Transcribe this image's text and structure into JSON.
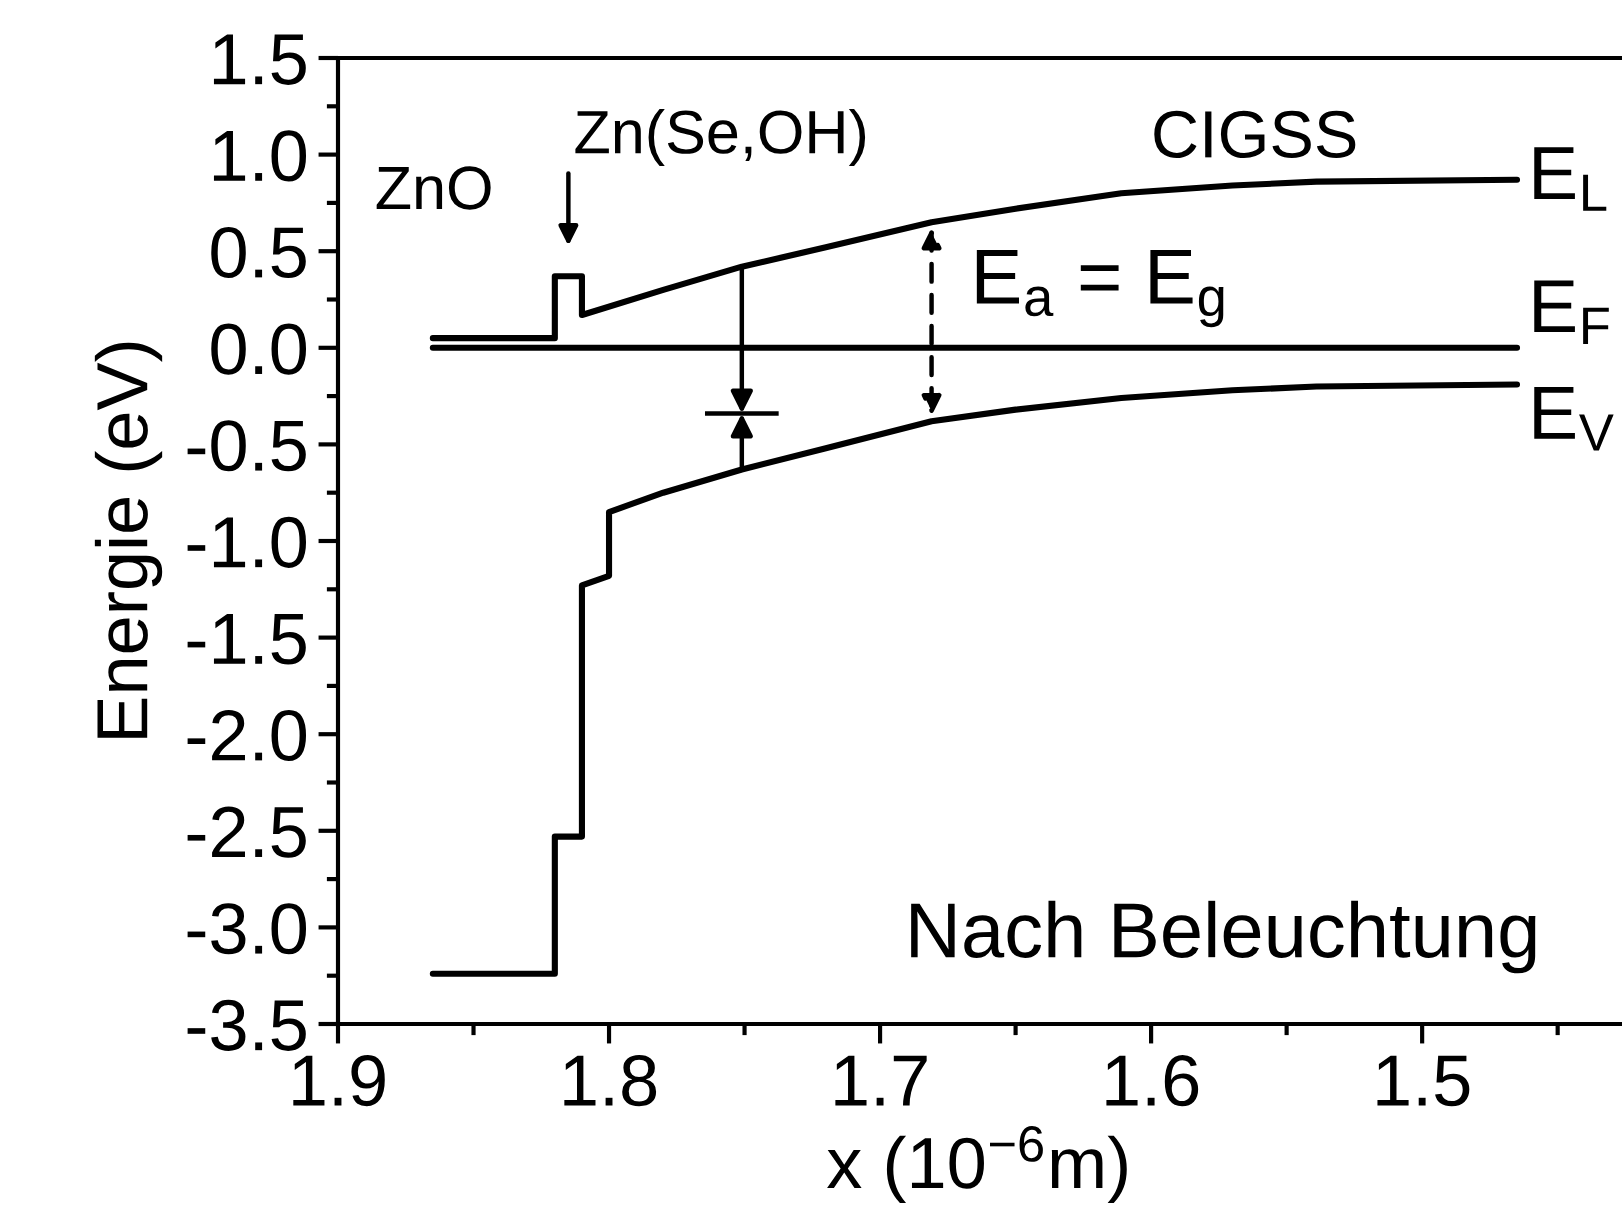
{
  "chart_data": {
    "type": "line",
    "xlabel": "x (10$^{−6}$m)",
    "ylabel": "Energie (eV)",
    "xlim": [
      1.9,
      1.427
    ],
    "xticks": [
      {
        "value": 1.9,
        "label": "1.9"
      },
      {
        "value": 1.8,
        "label": "1.8"
      },
      {
        "value": 1.7,
        "label": "1.7"
      },
      {
        "value": 1.6,
        "label": "1.6"
      },
      {
        "value": 1.5,
        "label": "1.5"
      }
    ],
    "ylim": [
      -3.5,
      1.5
    ],
    "yticks": [
      1.5,
      {
        "value": 1.0,
        "label": "1.0"
      },
      0.5,
      {
        "value": 0.0,
        "label": "0.0"
      },
      -0.5,
      {
        "value": -1.0,
        "label": "-1.0"
      },
      -1.5,
      {
        "value": -2.0,
        "label": "-2.0"
      },
      -2.5,
      {
        "value": -3.0,
        "label": "-3.0"
      },
      -3.5
    ],
    "grid": false,
    "legend": false,
    "series": [
      {
        "name": "E$_{L}$",
        "color": "#000000",
        "x": [
          1.865,
          1.82,
          1.82,
          1.81,
          1.81,
          1.78,
          1.751,
          1.72,
          1.681,
          1.65,
          1.611,
          1.57,
          1.539,
          1.465
        ],
        "values": [
          0.05,
          0.05,
          0.37,
          0.37,
          0.17,
          0.3,
          0.42,
          0.52,
          0.65,
          0.72,
          0.8,
          0.84,
          0.86,
          0.87
        ]
      },
      {
        "name": "E$_{F}$",
        "color": "#000000",
        "x": [
          1.865,
          1.465
        ],
        "values": [
          0.0,
          0.0
        ]
      },
      {
        "name": "E$_{V}$",
        "color": "#000000",
        "x": [
          1.865,
          1.82,
          1.82,
          1.81,
          1.81,
          1.8,
          1.8,
          1.78,
          1.751,
          1.72,
          1.681,
          1.65,
          1.611,
          1.57,
          1.539,
          1.465
        ],
        "values": [
          -3.24,
          -3.24,
          -2.53,
          -2.53,
          -1.23,
          -1.18,
          -0.85,
          -0.75,
          -0.63,
          -0.52,
          -0.38,
          -0.32,
          -0.26,
          -0.22,
          -0.2,
          -0.19
        ]
      }
    ],
    "annotations": [
      "ZnO",
      "CIGSS",
      "Nach Beleuchtung",
      {
        "text": "Zn(Se,OH)",
        "x": 1.815,
        "y": 0.37
      },
      {
        "text": "E$_{a}$ = E$_{g}$",
        "x": 1.681,
        "y": 0.65
      }
    ]
  }
}
